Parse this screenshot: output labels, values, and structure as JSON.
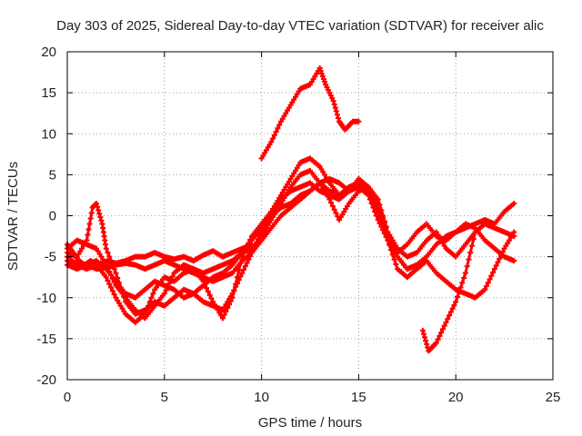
{
  "chart_data": {
    "type": "scatter",
    "title": "Day 303 of 2025, Sidereal Day-to-day VTEC variation (SDTVAR) for receiver alic",
    "xlabel": "GPS time / hours",
    "ylabel": "SDTVAR / TECUs",
    "xlim": [
      0,
      25
    ],
    "ylim": [
      -20,
      20
    ],
    "x_ticks": [
      "0",
      "5",
      "10",
      "15",
      "20",
      "25"
    ],
    "y_ticks": [
      "-20",
      "-15",
      "-10",
      "-5",
      "0",
      "5",
      "10",
      "15",
      "20"
    ],
    "grid": true,
    "marker": "plus",
    "color": "#ff0000",
    "series": [
      {
        "x": [
          0.0,
          0.3,
          0.6,
          0.9,
          1.2,
          1.5,
          1.8,
          2.1,
          2.5,
          3.0,
          3.5,
          4.0,
          4.5,
          5.0,
          5.5,
          6.0,
          6.5,
          7.0,
          7.5,
          8.0,
          8.5,
          9.0,
          9.5
        ],
        "y": [
          -3.5,
          -4.5,
          -5.5,
          -6.0,
          -5.5,
          -6.0,
          -5.8,
          -5.5,
          -5.8,
          -5.5,
          -5.0,
          -5.0,
          -4.5,
          -5.0,
          -5.3,
          -5.0,
          -5.5,
          -4.8,
          -4.3,
          -5.0,
          -4.5,
          -4.0,
          -3.5
        ]
      },
      {
        "x": [
          0.0,
          0.5,
          1.0,
          1.5,
          2.0,
          2.5,
          3.0,
          3.5,
          4.0,
          4.5,
          5.0,
          5.5,
          6.0,
          6.5,
          7.0,
          7.5,
          8.0,
          8.5,
          9.0,
          9.5,
          10.0,
          10.5,
          11.0,
          11.5,
          12.0,
          12.5,
          13.0,
          13.5,
          14.0,
          14.5,
          15.0,
          15.5,
          16.0,
          16.5,
          17.0,
          17.5,
          18.0
        ],
        "y": [
          -5.0,
          -6.0,
          -6.5,
          -6.0,
          -7.5,
          -10.0,
          -12.0,
          -13.0,
          -12.0,
          -9.0,
          -7.5,
          -8.0,
          -7.0,
          -6.5,
          -8.0,
          -10.5,
          -12.5,
          -10.0,
          -5.0,
          -2.5,
          -1.0,
          0.5,
          2.0,
          3.0,
          3.5,
          4.0,
          3.0,
          2.5,
          2.0,
          3.0,
          4.0,
          3.5,
          2.0,
          -2.0,
          -5.0,
          -6.5,
          -6.0
        ]
      },
      {
        "x": [
          0.0,
          0.5,
          1.0,
          1.5,
          2.0,
          2.5,
          3.0,
          3.5,
          4.0,
          4.5,
          5.0,
          5.5,
          6.0,
          6.5,
          7.0,
          7.5,
          8.0,
          8.5,
          9.0,
          9.5,
          10.0,
          10.5,
          11.0,
          11.5,
          12.0,
          12.5,
          13.0,
          13.5,
          14.0,
          14.5,
          15.0,
          15.5,
          16.0,
          16.5,
          17.0,
          17.5,
          18.0,
          18.5,
          19.0,
          19.5,
          20.0,
          20.5,
          21.0,
          21.5,
          22.0,
          22.5,
          23.0
        ],
        "y": [
          -4.0,
          -3.0,
          -3.5,
          -4.0,
          -6.0,
          -8.5,
          -10.0,
          -11.5,
          -12.5,
          -11.0,
          -9.5,
          -7.0,
          -6.0,
          -6.5,
          -7.0,
          -6.5,
          -6.0,
          -5.5,
          -4.5,
          -4.0,
          -2.5,
          -0.5,
          1.5,
          3.5,
          5.0,
          5.5,
          4.0,
          2.0,
          -0.5,
          1.5,
          3.0,
          3.5,
          1.5,
          -2.0,
          -4.0,
          -5.0,
          -4.5,
          -3.0,
          -2.0,
          -4.0,
          -5.0,
          -3.5,
          -2.0,
          -1.0,
          -1.5,
          -2.0,
          -2.5
        ]
      },
      {
        "x": [
          0.0,
          0.5,
          1.0,
          1.5,
          2.0,
          2.5,
          3.0,
          3.5,
          4.0,
          4.5,
          5.0,
          5.5,
          6.0,
          6.5,
          7.0,
          7.5,
          8.0,
          8.5,
          9.0,
          9.5,
          10.0,
          10.5,
          11.0,
          11.5,
          12.0,
          12.5,
          13.0,
          13.5,
          14.0,
          14.5,
          15.0,
          15.5,
          16.0,
          16.5,
          17.0,
          17.5,
          18.0,
          18.5,
          19.0,
          19.5,
          20.0,
          20.5,
          21.0,
          21.5,
          22.0,
          22.5,
          23.0
        ],
        "y": [
          -6.0,
          -6.5,
          -6.0,
          -5.5,
          -6.5,
          -8.0,
          -9.5,
          -10.0,
          -9.0,
          -8.0,
          -8.5,
          -9.0,
          -10.0,
          -9.5,
          -8.5,
          -7.5,
          -7.0,
          -6.0,
          -4.5,
          -3.0,
          -1.5,
          0.5,
          2.5,
          4.5,
          6.5,
          7.0,
          6.0,
          4.0,
          2.5,
          3.0,
          3.5,
          2.5,
          -0.5,
          -3.0,
          -5.0,
          -6.5,
          -6.0,
          -5.0,
          -3.5,
          -2.5,
          -2.0,
          -1.5,
          -1.0,
          -0.5,
          -1.0,
          0.5,
          1.5
        ]
      },
      {
        "x": [
          0.0,
          0.5,
          1.0,
          1.3,
          1.5,
          1.8,
          2.0,
          2.5,
          3.0,
          3.5,
          4.0,
          4.5,
          5.0,
          5.5,
          6.0,
          6.5,
          7.0,
          7.5,
          8.0,
          8.5,
          9.0,
          9.5,
          10.0,
          10.5,
          11.0,
          11.5,
          12.0,
          12.5,
          13.0,
          13.5,
          14.0,
          14.5,
          15.0,
          15.5,
          16.0,
          16.5,
          17.0,
          17.5,
          18.0,
          18.5,
          19.0,
          19.5,
          20.0,
          20.5,
          21.0,
          21.5,
          22.0,
          22.5,
          23.0
        ],
        "y": [
          -4.5,
          -5.0,
          -3.0,
          1.0,
          1.5,
          -1.0,
          -4.0,
          -7.0,
          -10.5,
          -12.0,
          -11.5,
          -10.5,
          -11.0,
          -10.0,
          -9.0,
          -9.5,
          -10.5,
          -11.0,
          -11.5,
          -9.5,
          -7.0,
          -4.5,
          -2.0,
          0.0,
          1.0,
          1.5,
          2.5,
          3.0,
          4.0,
          4.5,
          4.0,
          3.0,
          4.5,
          3.5,
          0.5,
          -2.5,
          -4.5,
          -3.5,
          -2.0,
          -1.0,
          -2.5,
          -3.0,
          -2.0,
          -1.0,
          -1.5,
          -3.0,
          -4.0,
          -5.0,
          -5.5
        ]
      },
      {
        "x": [
          0.0,
          0.5,
          1.0,
          1.5,
          2.0,
          2.5,
          3.0,
          3.5,
          4.0,
          4.5,
          5.0,
          5.5,
          6.0,
          6.5,
          7.0,
          7.5,
          8.0,
          8.5,
          9.0,
          9.5,
          10.0,
          10.5,
          11.0,
          11.5,
          12.0,
          12.5,
          13.0,
          13.5,
          14.0,
          14.5,
          15.0,
          15.5,
          16.0,
          16.5,
          17.0,
          17.5,
          18.0,
          18.5,
          19.0,
          19.5,
          20.0,
          20.5,
          21.0,
          21.5,
          22.0,
          22.5,
          23.0
        ],
        "y": [
          -5.5,
          -5.8,
          -6.0,
          -6.5,
          -6.3,
          -6.0,
          -5.8,
          -6.0,
          -6.5,
          -6.0,
          -5.5,
          -6.0,
          -6.5,
          -7.0,
          -7.5,
          -8.0,
          -7.5,
          -7.0,
          -5.5,
          -4.5,
          -3.0,
          -1.5,
          0.0,
          1.0,
          2.0,
          3.0,
          4.0,
          3.0,
          2.5,
          3.5,
          4.0,
          3.0,
          0.5,
          -3.0,
          -6.5,
          -7.5,
          -6.5,
          -5.5,
          -7.0,
          -8.0,
          -9.0,
          -9.5,
          -10.0,
          -9.0,
          -6.5,
          -4.0,
          -2.0
        ]
      },
      {
        "x": [
          10.0,
          10.5,
          11.0,
          11.5,
          12.0,
          12.5,
          13.0,
          13.3,
          13.7,
          14.0,
          14.3,
          14.7,
          15.0
        ],
        "y": [
          7.0,
          9.0,
          11.5,
          13.5,
          15.5,
          16.0,
          18.0,
          16.0,
          14.0,
          11.5,
          10.5,
          11.5,
          11.5
        ]
      },
      {
        "x": [
          18.3,
          18.6,
          19.0,
          19.5,
          20.0,
          20.5,
          21.0
        ],
        "y": [
          -14.0,
          -16.5,
          -15.5,
          -13.0,
          -10.5,
          -7.0,
          -2.0
        ]
      }
    ]
  }
}
